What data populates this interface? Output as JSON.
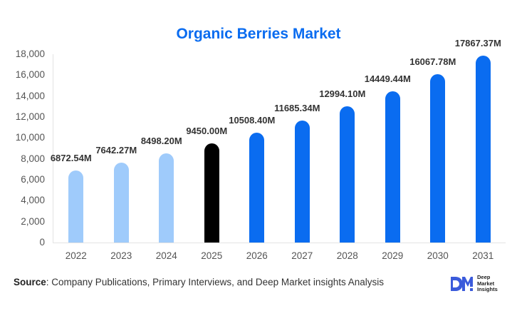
{
  "chart_data": {
    "type": "bar",
    "title": "Organic Berries Market",
    "xlabel": "",
    "ylabel": "",
    "ylim": [
      0,
      18000
    ],
    "yticks": [
      "0",
      "2,000",
      "4,000",
      "6,000",
      "8,000",
      "10,000",
      "12,000",
      "14,000",
      "16,000",
      "18,000"
    ],
    "categories": [
      "2022",
      "2023",
      "2024",
      "2025",
      "2026",
      "2027",
      "2028",
      "2029",
      "2030",
      "2031"
    ],
    "values": [
      6872.54,
      7642.27,
      8498.2,
      9450.0,
      10508.4,
      11685.34,
      12994.1,
      14449.44,
      16067.78,
      17867.37
    ],
    "data_labels": [
      "6872.54M",
      "7642.27M",
      "8498.20M",
      "9450.00M",
      "10508.40M",
      "11685.34M",
      "12994.10M",
      "14449.44M",
      "16067.78M",
      "17867.37M"
    ],
    "bar_colors": [
      "#9fcbfb",
      "#9fcbfb",
      "#9fcbfb",
      "#000000",
      "#0a6cf0",
      "#0a6cf0",
      "#0a6cf0",
      "#0a6cf0",
      "#0a6cf0",
      "#0a6cf0"
    ],
    "grid": false,
    "legend": null,
    "unit": "M"
  },
  "colors": {
    "historical": "#9fcbfb",
    "base_year": "#000000",
    "forecast": "#0a6cf0",
    "title": "#0a6cf0"
  },
  "footer": {
    "source_label": "Source",
    "source_text": ": Company Publications, Primary Interviews, and Deep Market insights Analysis"
  },
  "logo": {
    "mark": "DM",
    "line1": "Deep",
    "line2": "Market",
    "line3": "Insights"
  }
}
